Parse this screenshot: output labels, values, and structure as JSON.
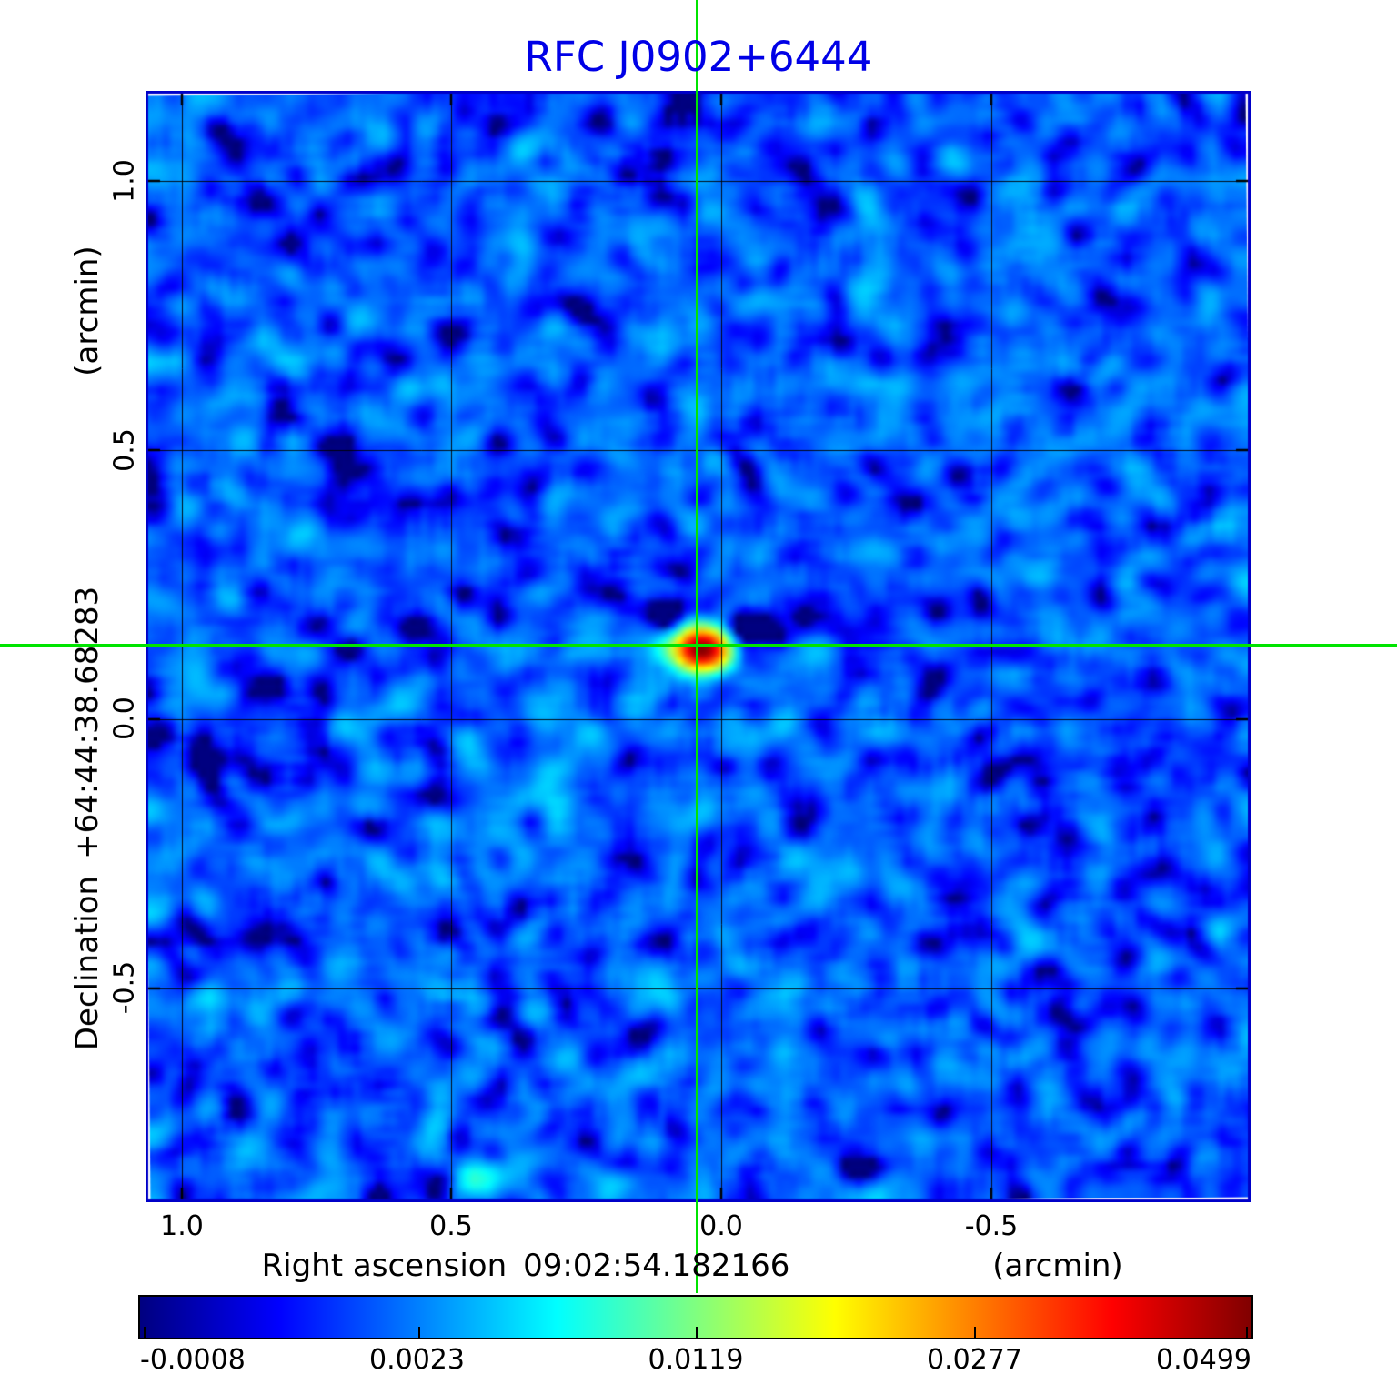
{
  "title": "RFC J0902+6444",
  "axes": {
    "x_label": "Right ascension",
    "x_value": "09:02:54.182166",
    "x_unit": "(arcmin)",
    "y_label": "Declination",
    "y_value": "+64:44:38.68283",
    "y_unit": "(arcmin)",
    "x_ticks": [
      "1.0",
      "0.5",
      "0.0",
      "-0.5"
    ],
    "y_ticks": [
      "1.0",
      "0.5",
      "0.0",
      "-0.5"
    ]
  },
  "colorbar": {
    "tick_labels": [
      "-0.0008",
      "0.0023",
      "0.0119",
      "0.0277",
      "0.0499"
    ]
  },
  "colors": {
    "title": "#0000e6",
    "frame": "#0000c8",
    "crosshair": "#00e400",
    "grid": "rgba(0,0,0,0.9)",
    "colormap_stops": [
      "#000080",
      "#0000ff",
      "#00ffff",
      "#ffff00",
      "#ff0000",
      "#800000"
    ]
  },
  "chart_data": {
    "type": "heatmap",
    "title": "RFC J0902+6444",
    "xlabel": "Right ascension 09:02:54.182166 (arcmin)",
    "ylabel": "Declination +64:44:38.68283 (arcmin)",
    "colormap": "jet",
    "scale": "sqrt",
    "grid": true,
    "vmin": -0.0008,
    "vmax": 0.0499,
    "colorbar_tick_values": [
      -0.0008,
      0.0023,
      0.0119,
      0.0277,
      0.0499
    ],
    "x_ticks_arcmin": [
      1.0,
      0.5,
      0.0,
      -0.5
    ],
    "y_ticks_arcmin": [
      1.0,
      0.5,
      0.0,
      -0.5
    ],
    "x_range_arcmin": [
      1.067,
      -0.981
    ],
    "y_range_arcmin": [
      1.167,
      -0.897
    ],
    "background_level": 0.0014,
    "source": {
      "ra_offset_arcmin": 0.043,
      "dec_offset_arcmin": 0.138,
      "peak_flux": 0.0505
    },
    "secondary_blob": {
      "ra_offset_arcmin": 0.46,
      "dec_offset_arcmin": -0.847,
      "peak_flux": 0.0048
    },
    "crosshair_arcmin": {
      "x": 0.043,
      "y": 0.138
    }
  }
}
